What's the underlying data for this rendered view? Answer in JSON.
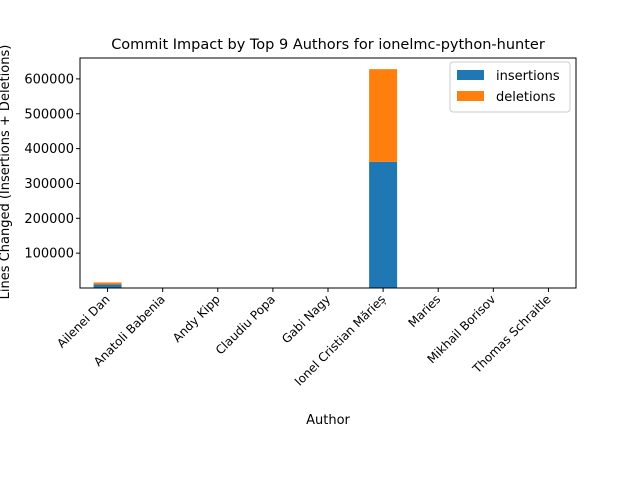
{
  "chart_data": {
    "type": "bar",
    "stacked": true,
    "title": "Commit Impact by Top 9 Authors for ionelmc-python-hunter",
    "xlabel": "Author",
    "ylabel": "Lines Changed (Insertions + Deletions)",
    "categories": [
      "Ailenei Dan",
      "Anatoli Babenia",
      "Andy Kipp",
      "Claudiu Popa",
      "Gabi Nagy",
      "Ionel Cristian Mărieș",
      "Maries",
      "Mikhail Borisov",
      "Thomas Schraitle"
    ],
    "series": [
      {
        "name": "insertions",
        "color": "#1f77b4",
        "values": [
          10000,
          150,
          30,
          60,
          20,
          362000,
          400,
          100,
          80
        ]
      },
      {
        "name": "deletions",
        "color": "#ff7f0e",
        "values": [
          6000,
          80,
          10,
          20,
          10,
          266000,
          200,
          50,
          40
        ]
      }
    ],
    "ylim": [
      0,
      660000
    ],
    "yticks": [
      100000,
      200000,
      300000,
      400000,
      500000,
      600000
    ],
    "ytick_labels": [
      "100000",
      "200000",
      "300000",
      "400000",
      "500000",
      "600000"
    ],
    "legend": "top-right",
    "grid": false
  }
}
